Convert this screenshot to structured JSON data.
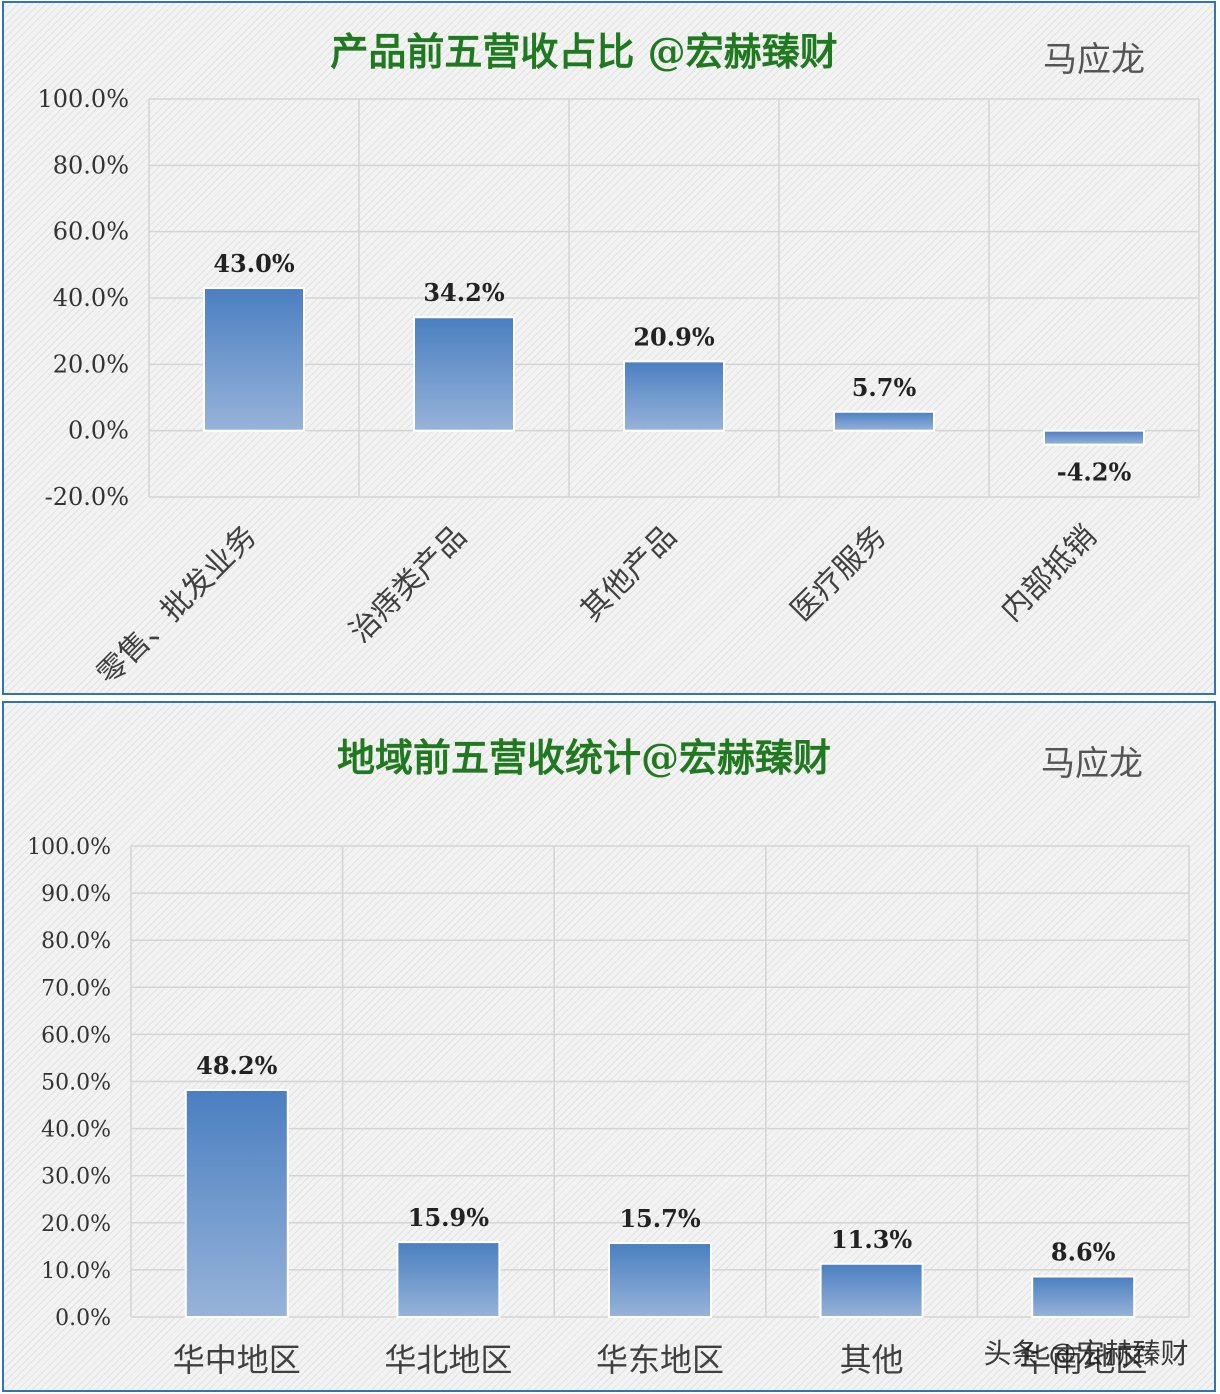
{
  "colors": {
    "bar_top": "#4a7fc1",
    "bar_bottom": "#97b3d9",
    "title": "#1f7a1f",
    "border": "#2f74b5",
    "grid": "#d4d4d4"
  },
  "watermark": "头条 @宏赫臻财",
  "chart_data": [
    {
      "type": "bar",
      "title": "产品前五营收占比 @宏赫臻财",
      "author": "马应龙",
      "categories": [
        "零售、批发业务",
        "治痔类产品",
        "其他产品",
        "医疗服务",
        "内部抵销"
      ],
      "values": [
        43.0,
        34.2,
        20.9,
        5.7,
        -4.2
      ],
      "data_labels": [
        "43.0%",
        "34.2%",
        "20.9%",
        "5.7%",
        "-4.2%"
      ],
      "ylim": [
        -20,
        100
      ],
      "yticks": [
        100,
        80,
        60,
        40,
        20,
        0,
        -20
      ],
      "ytick_labels": [
        "100.0%",
        "80.0%",
        "60.0%",
        "40.0%",
        "20.0%",
        "0.0%",
        "-20.0%"
      ],
      "xlabel": "",
      "ylabel": "",
      "grid": true,
      "legend": "none"
    },
    {
      "type": "bar",
      "title": "地域前五营收统计@宏赫臻财",
      "author": "马应龙",
      "categories": [
        "华中地区",
        "华北地区",
        "华东地区",
        "其他",
        "华南地区"
      ],
      "values": [
        48.2,
        15.9,
        15.7,
        11.3,
        8.6
      ],
      "data_labels": [
        "48.2%",
        "15.9%",
        "15.7%",
        "11.3%",
        "8.6%"
      ],
      "ylim": [
        0,
        100
      ],
      "yticks": [
        100,
        90,
        80,
        70,
        60,
        50,
        40,
        30,
        20,
        10,
        0
      ],
      "ytick_labels": [
        "100.0%",
        "90.0%",
        "80.0%",
        "70.0%",
        "60.0%",
        "50.0%",
        "40.0%",
        "30.0%",
        "20.0%",
        "10.0%",
        "0.0%"
      ],
      "xlabel": "",
      "ylabel": "",
      "grid": true,
      "legend": "none"
    }
  ]
}
